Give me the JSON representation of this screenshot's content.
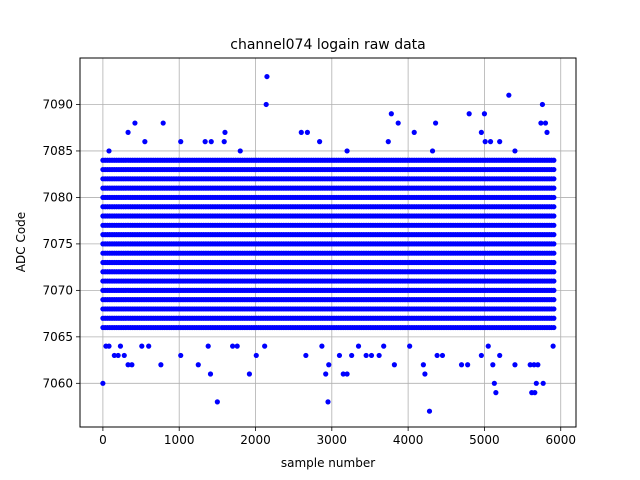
{
  "chart_data": {
    "type": "scatter",
    "title": "channel074 logain raw data",
    "xlabel": "sample number",
    "ylabel": "ADC Code",
    "xlim": [
      -300,
      6200
    ],
    "ylim": [
      7055.3,
      7095.0
    ],
    "xticks": [
      0,
      1000,
      2000,
      3000,
      4000,
      5000,
      6000
    ],
    "yticks": [
      7060,
      7065,
      7070,
      7075,
      7080,
      7085,
      7090
    ],
    "grid": true,
    "marker_color": "#0000ff",
    "band": {
      "x_start": 0,
      "x_end": 5930,
      "x_step": 30,
      "levels": [
        7066,
        7067,
        7068,
        7069,
        7070,
        7071,
        7072,
        7073,
        7074,
        7075,
        7076,
        7077,
        7078,
        7079,
        7080,
        7081,
        7082,
        7083,
        7084
      ]
    },
    "points": [
      [
        0,
        7060
      ],
      [
        2150,
        7093
      ],
      [
        2140,
        7090
      ],
      [
        1500,
        7058
      ],
      [
        2950,
        7058
      ],
      [
        4280,
        7057
      ],
      [
        5320,
        7091
      ],
      [
        5760,
        7090
      ],
      [
        3780,
        7089
      ],
      [
        4800,
        7089
      ],
      [
        5000,
        7089
      ],
      [
        3870,
        7088
      ],
      [
        420,
        7088
      ],
      [
        790,
        7088
      ],
      [
        4360,
        7088
      ],
      [
        5740,
        7088
      ],
      [
        5800,
        7088
      ],
      [
        330,
        7087
      ],
      [
        1600,
        7087
      ],
      [
        2600,
        7087
      ],
      [
        2680,
        7087
      ],
      [
        4080,
        7087
      ],
      [
        4960,
        7087
      ],
      [
        5820,
        7087
      ],
      [
        550,
        7086
      ],
      [
        1020,
        7086
      ],
      [
        1340,
        7086
      ],
      [
        1420,
        7086
      ],
      [
        1590,
        7086
      ],
      [
        2840,
        7086
      ],
      [
        3740,
        7086
      ],
      [
        5080,
        7086
      ],
      [
        5200,
        7086
      ],
      [
        5010,
        7086
      ],
      [
        80,
        7085
      ],
      [
        1800,
        7085
      ],
      [
        3200,
        7085
      ],
      [
        4320,
        7085
      ],
      [
        5400,
        7085
      ],
      [
        40,
        7064
      ],
      [
        80,
        7064
      ],
      [
        150,
        7063
      ],
      [
        200,
        7063
      ],
      [
        230,
        7064
      ],
      [
        280,
        7063
      ],
      [
        330,
        7062
      ],
      [
        380,
        7062
      ],
      [
        510,
        7064
      ],
      [
        600,
        7064
      ],
      [
        760,
        7062
      ],
      [
        1020,
        7063
      ],
      [
        1250,
        7062
      ],
      [
        1380,
        7064
      ],
      [
        1410,
        7061
      ],
      [
        1700,
        7064
      ],
      [
        1760,
        7064
      ],
      [
        1920,
        7061
      ],
      [
        2010,
        7063
      ],
      [
        2120,
        7064
      ],
      [
        2660,
        7063
      ],
      [
        2870,
        7064
      ],
      [
        2920,
        7061
      ],
      [
        2960,
        7062
      ],
      [
        3100,
        7063
      ],
      [
        3150,
        7061
      ],
      [
        3200,
        7061
      ],
      [
        3260,
        7063
      ],
      [
        3350,
        7064
      ],
      [
        3450,
        7063
      ],
      [
        3520,
        7063
      ],
      [
        3620,
        7063
      ],
      [
        3680,
        7064
      ],
      [
        3820,
        7062
      ],
      [
        4020,
        7064
      ],
      [
        4200,
        7062
      ],
      [
        4220,
        7061
      ],
      [
        4380,
        7063
      ],
      [
        4450,
        7063
      ],
      [
        4700,
        7062
      ],
      [
        4780,
        7062
      ],
      [
        4960,
        7063
      ],
      [
        5050,
        7064
      ],
      [
        5110,
        7062
      ],
      [
        5130,
        7060
      ],
      [
        5150,
        7059
      ],
      [
        5200,
        7063
      ],
      [
        5400,
        7062
      ],
      [
        5600,
        7062
      ],
      [
        5620,
        7059
      ],
      [
        5660,
        7059
      ],
      [
        5680,
        7060
      ],
      [
        5650,
        7062
      ],
      [
        5770,
        7060
      ],
      [
        5700,
        7062
      ],
      [
        5900,
        7064
      ]
    ]
  }
}
